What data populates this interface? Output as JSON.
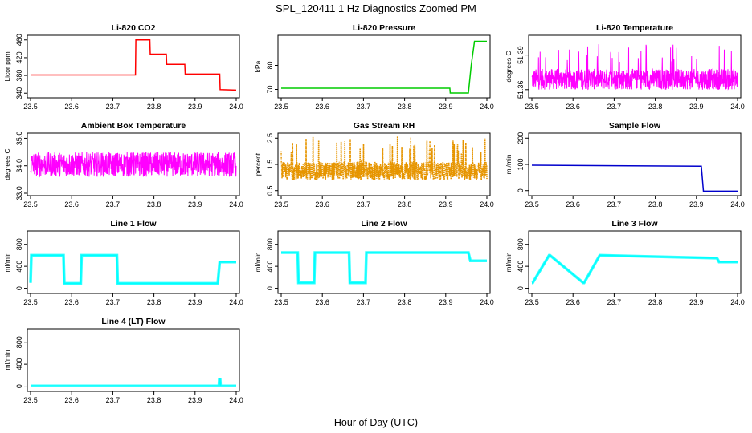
{
  "figure": {
    "title": "SPL_120411  1 Hz Diagnostics Zoomed PM",
    "xlabel": "Hour of Day (UTC)"
  },
  "chart_data": [
    {
      "type": "line",
      "title": "Li-820 CO2",
      "ylabel": "Licor ppm",
      "color": "#ff0000",
      "xlim": [
        23.5,
        24.0
      ],
      "ylim": [
        335,
        465
      ],
      "xticks": [
        "23.5",
        "23.6",
        "23.7",
        "23.8",
        "23.9",
        "24.0"
      ],
      "yticks": [
        340,
        380,
        420,
        460
      ],
      "x": [
        23.5,
        23.755,
        23.756,
        23.79,
        23.791,
        23.83,
        23.831,
        23.875,
        23.876,
        23.96,
        23.961,
        24.0
      ],
      "y": [
        381,
        381,
        460,
        460,
        428,
        428,
        405,
        405,
        383,
        383,
        348,
        347
      ]
    },
    {
      "type": "line",
      "title": "Li-820 Pressure",
      "ylabel": "kPa",
      "color": "#00cc00",
      "xlim": [
        23.5,
        24.0
      ],
      "ylim": [
        67.5,
        91.5
      ],
      "xticks": [
        "23.5",
        "23.6",
        "23.7",
        "23.8",
        "23.9",
        "24.0"
      ],
      "yticks": [
        70,
        80
      ],
      "x": [
        23.5,
        23.91,
        23.911,
        23.955,
        23.962,
        23.97,
        24.0
      ],
      "y": [
        70.5,
        70.5,
        68.5,
        68.5,
        80,
        90,
        90
      ]
    },
    {
      "type": "line",
      "title": "Li-820 Temperature",
      "ylabel": "degrees C",
      "color": "#ff00ff",
      "xlim": [
        23.5,
        24.0
      ],
      "ylim": [
        51.355,
        51.405
      ],
      "xticks": [
        "23.5",
        "23.6",
        "23.7",
        "23.8",
        "23.9",
        "24.0"
      ],
      "yticks": [
        51.36,
        51.39
      ],
      "noise": {
        "low": 51.36,
        "high": 51.378,
        "spikes_to": 51.4
      }
    },
    {
      "type": "line",
      "title": "Ambient Box Temperature",
      "ylabel": "degrees C",
      "color": "#ff00ff",
      "xlim": [
        23.5,
        24.0
      ],
      "ylim": [
        33.0,
        35.1
      ],
      "xticks": [
        "23.5",
        "23.6",
        "23.7",
        "23.8",
        "23.9",
        "24.0"
      ],
      "yticks": [
        33.0,
        34.0,
        35.0
      ],
      "noise": {
        "low": 33.6,
        "high": 34.5
      }
    },
    {
      "type": "scatter",
      "title": "Gas Stream RH",
      "ylabel": "percent",
      "color": "#e69500",
      "xlim": [
        23.5,
        24.0
      ],
      "ylim": [
        0.4,
        2.6
      ],
      "xticks": [
        "23.5",
        "23.6",
        "23.7",
        "23.8",
        "23.9",
        "24.0"
      ],
      "yticks": [
        0.5,
        1.5,
        2.5
      ],
      "noise": {
        "low": 0.9,
        "high": 1.6,
        "spikes_to": 2.6
      }
    },
    {
      "type": "line",
      "title": "Sample Flow",
      "ylabel": "ml/min",
      "color": "#0000cc",
      "xlim": [
        23.5,
        24.0
      ],
      "ylim": [
        -10,
        210
      ],
      "xticks": [
        "23.5",
        "23.6",
        "23.7",
        "23.8",
        "23.9",
        "24.0"
      ],
      "yticks": [
        0,
        100,
        200
      ],
      "x": [
        23.5,
        23.91,
        23.912,
        23.917,
        24.0
      ],
      "y": [
        97,
        93,
        93,
        -2,
        -2
      ]
    },
    {
      "type": "line",
      "title": "Line 1 Flow",
      "ylabel": "ml/min",
      "color": "#00ffff",
      "xlim": [
        23.5,
        24.0
      ],
      "ylim": [
        -50,
        1000
      ],
      "xticks": [
        "23.5",
        "23.6",
        "23.7",
        "23.8",
        "23.9",
        "24.0"
      ],
      "yticks": [
        0,
        400,
        800
      ],
      "x": [
        23.5,
        23.502,
        23.58,
        23.582,
        23.622,
        23.624,
        23.71,
        23.712,
        23.955,
        23.96,
        24.0
      ],
      "y": [
        100,
        600,
        600,
        90,
        90,
        600,
        600,
        90,
        90,
        480,
        480
      ]
    },
    {
      "type": "line",
      "title": "Line 2 Flow",
      "ylabel": "ml/min",
      "color": "#00ffff",
      "xlim": [
        23.5,
        24.0
      ],
      "ylim": [
        -50,
        1000
      ],
      "xticks": [
        "23.5",
        "23.6",
        "23.7",
        "23.8",
        "23.9",
        "24.0"
      ],
      "yticks": [
        0,
        400,
        800
      ],
      "x": [
        23.5,
        23.54,
        23.542,
        23.58,
        23.582,
        23.665,
        23.667,
        23.705,
        23.707,
        23.955,
        23.96,
        24.0
      ],
      "y": [
        650,
        650,
        100,
        100,
        650,
        650,
        100,
        100,
        650,
        650,
        500,
        500
      ]
    },
    {
      "type": "line",
      "title": "Line 3 Flow",
      "ylabel": "ml/min",
      "color": "#00ffff",
      "xlim": [
        23.5,
        24.0
      ],
      "ylim": [
        -50,
        1000
      ],
      "xticks": [
        "23.5",
        "23.6",
        "23.7",
        "23.8",
        "23.9",
        "24.0"
      ],
      "yticks": [
        0,
        400,
        800
      ],
      "x": [
        23.5,
        23.502,
        23.542,
        23.544,
        23.625,
        23.627,
        23.665,
        23.667,
        23.95,
        23.955,
        24.0
      ],
      "y": [
        100,
        100,
        600,
        600,
        100,
        100,
        600,
        600,
        550,
        480,
        480
      ]
    },
    {
      "type": "line",
      "title": "Line 4 (LT) Flow",
      "ylabel": "ml/min",
      "color": "#00ffff",
      "xlim": [
        23.5,
        24.0
      ],
      "ylim": [
        -50,
        1000
      ],
      "xticks": [
        "23.5",
        "23.6",
        "23.7",
        "23.8",
        "23.9",
        "24.0"
      ],
      "yticks": [
        0,
        400,
        800
      ],
      "x": [
        23.5,
        23.958,
        23.959,
        23.961,
        23.962,
        24.0
      ],
      "y": [
        5,
        5,
        130,
        130,
        5,
        5
      ]
    }
  ]
}
